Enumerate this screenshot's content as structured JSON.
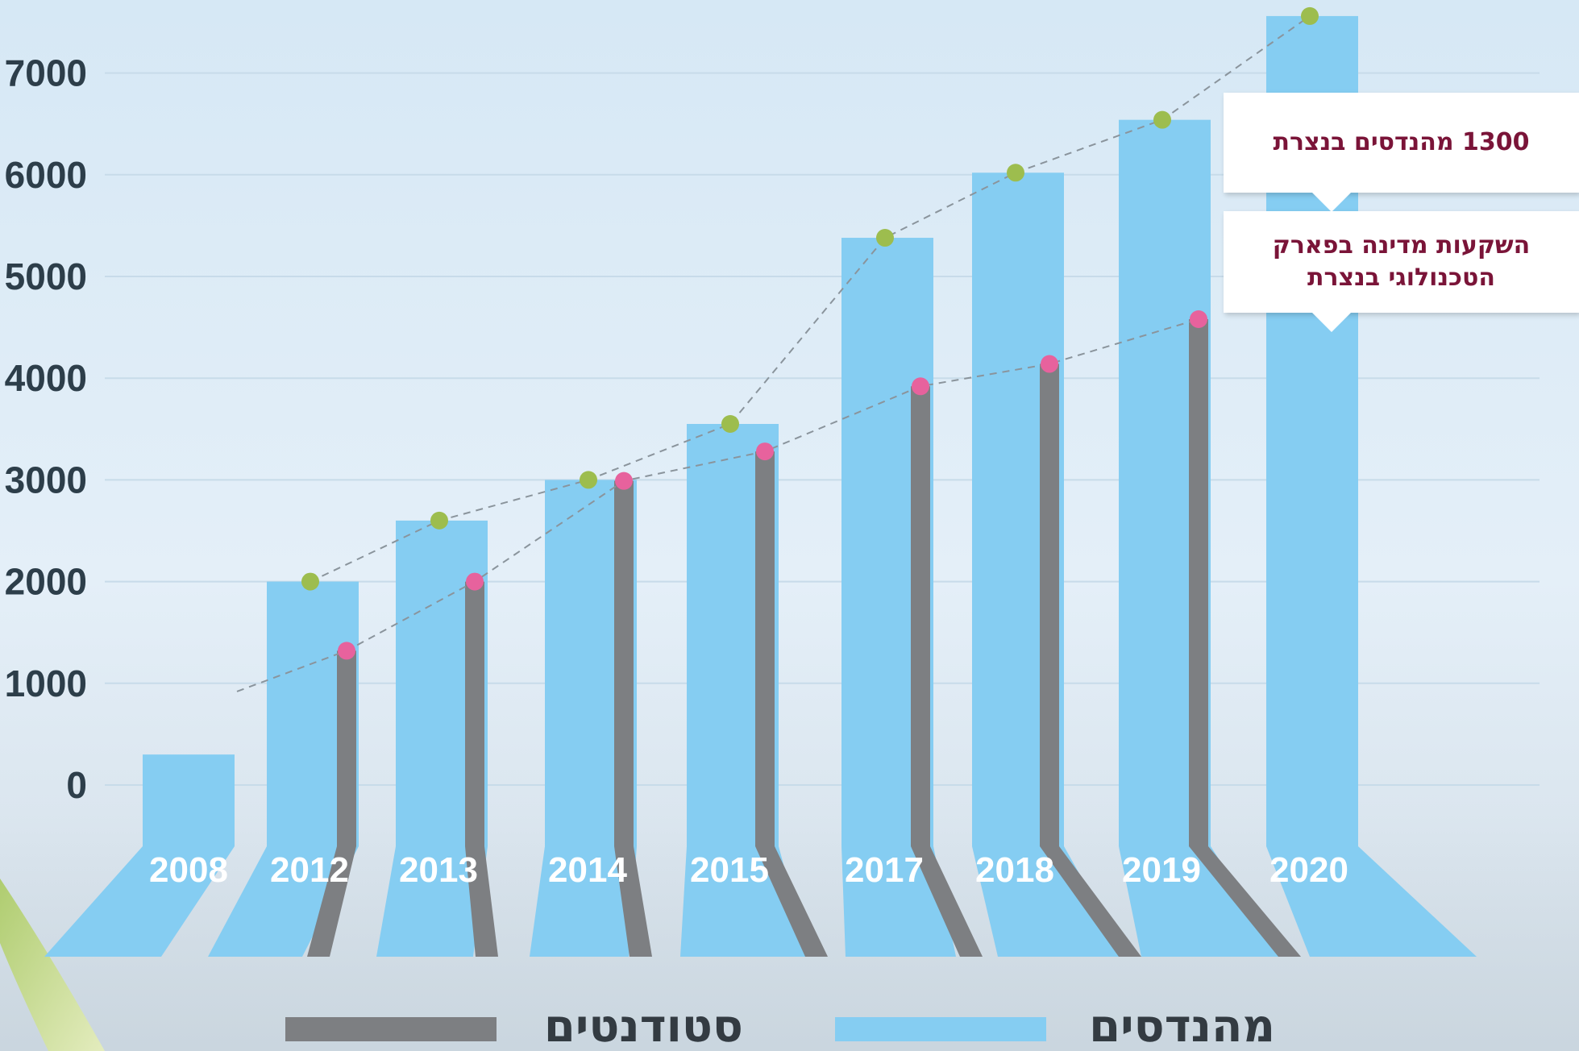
{
  "chart_data": {
    "type": "bar",
    "categories": [
      "2008",
      "2012",
      "2013",
      "2014",
      "2015",
      "2017",
      "2018",
      "2019",
      "2020"
    ],
    "series": [
      {
        "name": "מהנדסים",
        "values": [
          300,
          2000,
          2600,
          3000,
          3550,
          5380,
          6020,
          6540,
          7560
        ],
        "color": "#85cdf2"
      },
      {
        "name": "סטודנטים",
        "values": [
          null,
          1320,
          2000,
          2990,
          3280,
          3920,
          4140,
          4580,
          null
        ],
        "color": "#7d7f82"
      }
    ],
    "y_ticks": [
      "0",
      "1000",
      "2000",
      "3000",
      "4000",
      "5000",
      "6000",
      "7000"
    ],
    "ylim": [
      0,
      7600
    ],
    "trend_marker_colors": {
      "engineers": "#9dbd4e",
      "students": "#e7629d"
    },
    "annotations": [
      {
        "text": "1300 מהנדסים בנצרת"
      },
      {
        "text_line1": "השקעות מדינה בפארק",
        "text_line2": "הטכנולוגי בנצרת"
      }
    ],
    "legend_position": "bottom",
    "title": "",
    "xlabel": "",
    "ylabel": ""
  }
}
